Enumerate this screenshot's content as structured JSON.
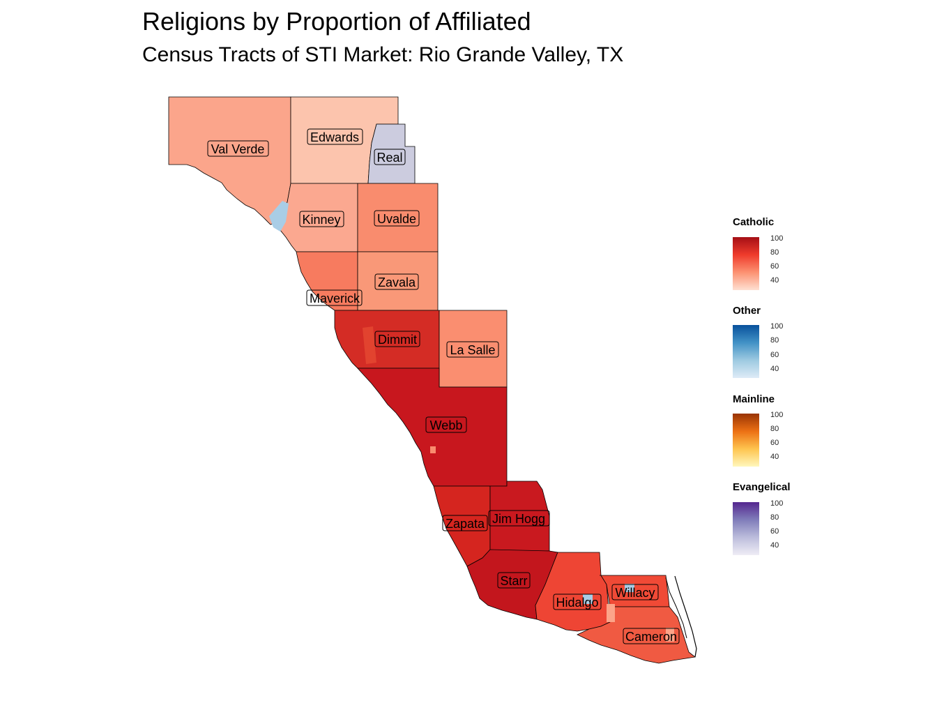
{
  "title": "Religions by Proportion of Affiliated",
  "subtitle": "Census Tracts of STI Market: Rio Grande Valley, TX",
  "counties": [
    {
      "name": "Val Verde",
      "category": "Catholic",
      "value": 50
    },
    {
      "name": "Edwards",
      "category": "Catholic",
      "value": 40
    },
    {
      "name": "Real",
      "category": "Evangelical",
      "value": 45
    },
    {
      "name": "Kinney",
      "category": "Catholic",
      "value": 50
    },
    {
      "name": "Uvalde",
      "category": "Catholic",
      "value": 60
    },
    {
      "name": "Zavala",
      "category": "Catholic",
      "value": 55
    },
    {
      "name": "Maverick",
      "category": "Catholic",
      "value": 60
    },
    {
      "name": "Dimmit",
      "category": "Catholic",
      "value": 85
    },
    {
      "name": "La Salle",
      "category": "Catholic",
      "value": 60
    },
    {
      "name": "Webb",
      "category": "Catholic",
      "value": 90
    },
    {
      "name": "Zapata",
      "category": "Catholic",
      "value": 82
    },
    {
      "name": "Jim Hogg",
      "category": "Catholic",
      "value": 90
    },
    {
      "name": "Starr",
      "category": "Catholic",
      "value": 95
    },
    {
      "name": "Hidalgo",
      "category": "Catholic",
      "value": 75
    },
    {
      "name": "Willacy",
      "category": "Catholic",
      "value": 72
    },
    {
      "name": "Cameron",
      "category": "Catholic",
      "value": 70
    }
  ],
  "legend": [
    {
      "title": "Catholic",
      "colors": [
        "#fee0d2",
        "#fc9272",
        "#ef3b2c",
        "#a50f15"
      ],
      "ticks": [
        "100",
        "80",
        "60",
        "40"
      ]
    },
    {
      "title": "Other",
      "colors": [
        "#deebf7",
        "#9ecae1",
        "#4292c6",
        "#08519c"
      ],
      "ticks": [
        "100",
        "80",
        "60",
        "40"
      ]
    },
    {
      "title": "Mainline",
      "colors": [
        "#fff7bc",
        "#fec44f",
        "#ec7014",
        "#993404"
      ],
      "ticks": [
        "100",
        "80",
        "60",
        "40"
      ]
    },
    {
      "title": "Evangelical",
      "colors": [
        "#efedf5",
        "#bcbddc",
        "#807dba",
        "#54278f"
      ],
      "ticks": [
        "100",
        "80",
        "60",
        "40"
      ]
    }
  ],
  "colors": {
    "catholic_light": "#fdc2ac",
    "catholic_mid": "#f77f62",
    "catholic_dark": "#c8161d",
    "other_light": "#a9cde6",
    "evangelical_light": "#ccccdf"
  }
}
